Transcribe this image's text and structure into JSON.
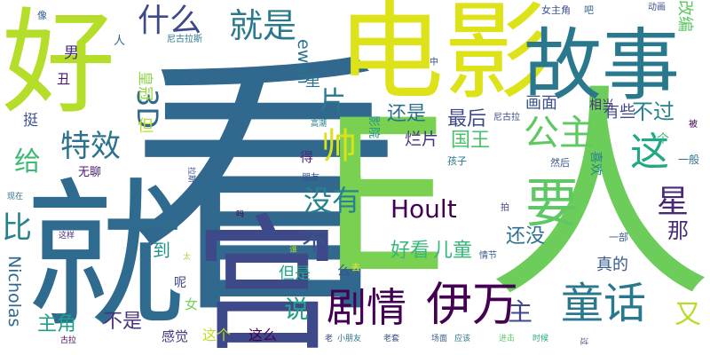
{
  "colors": {
    "palette": [
      "#440154",
      "#46327e",
      "#365c8d",
      "#277f8e",
      "#1fa187",
      "#4ac16d",
      "#a0da39",
      "#fde725"
    ]
  },
  "words": [
    {
      "text": "看",
      "color": "#31688e",
      "weight": 100
    },
    {
      "text": "就",
      "color": "#2f6b8e",
      "weight": 85
    },
    {
      "text": "人",
      "color": "#6ccd5a",
      "weight": 84
    },
    {
      "text": "宫",
      "color": "#3e4989",
      "weight": 82
    },
    {
      "text": "E",
      "color": "#7ad151",
      "weight": 80
    },
    {
      "text": "电影",
      "color": "#dde318",
      "weight": 78
    },
    {
      "text": "好",
      "color": "#b5de2b",
      "weight": 72
    },
    {
      "text": "故事",
      "color": "#2a788e",
      "weight": 66
    },
    {
      "text": "要",
      "color": "#5ec962",
      "weight": 48
    },
    {
      "text": "伊万",
      "color": "#440154",
      "weight": 44
    },
    {
      "text": "童话",
      "color": "#2a788e",
      "weight": 40
    },
    {
      "text": "剧情",
      "color": "#440154",
      "weight": 38
    },
    {
      "text": "这",
      "color": "#22a884",
      "weight": 37
    },
    {
      "text": "帅",
      "color": "#d8e219",
      "weight": 36
    },
    {
      "text": "公主",
      "color": "#5ec962",
      "weight": 33
    },
    {
      "text": "就是",
      "color": "#2a788e",
      "weight": 32
    },
    {
      "text": "什么",
      "color": "#3e4989",
      "weight": 31
    },
    {
      "text": "特效",
      "color": "#2c728e",
      "weight": 30
    },
    {
      "text": "星",
      "color": "#482878",
      "weight": 30
    },
    {
      "text": "没有",
      "color": "#26828e",
      "weight": 28
    },
    {
      "text": "3D",
      "color": "#31688e",
      "weight": 28
    },
    {
      "text": "比",
      "color": "#26828e",
      "weight": 28
    },
    {
      "text": "片",
      "color": "#2a788e",
      "weight": 27
    },
    {
      "text": "给",
      "color": "#3fbc73",
      "weight": 26
    },
    {
      "text": "又",
      "color": "#b5de2b",
      "weight": 26
    },
    {
      "text": "不",
      "color": "#3b528b",
      "weight": 25
    },
    {
      "text": "说",
      "color": "#20a386",
      "weight": 25
    },
    {
      "text": "Hoult",
      "color": "#440154",
      "weight": 24
    },
    {
      "text": "主",
      "color": "#3e4989",
      "weight": 24
    },
    {
      "text": "不过",
      "color": "#26828e",
      "weight": 21
    },
    {
      "text": "那",
      "color": "#472d7b",
      "weight": 20
    },
    {
      "text": "还是",
      "color": "#2d708e",
      "weight": 20
    },
    {
      "text": "最后",
      "color": "#3e4989",
      "weight": 19
    },
    {
      "text": "国王",
      "color": "#4ac16d",
      "weight": 19
    },
    {
      "text": "还没",
      "color": "#2e6f8e",
      "weight": 19
    },
    {
      "text": "不是",
      "color": "#46327e",
      "weight": 19
    },
    {
      "text": "主角",
      "color": "#1f9e89",
      "weight": 19
    },
    {
      "text": "好看",
      "color": "#35b779",
      "weight": 19
    },
    {
      "text": "儿童",
      "color": "#35b779",
      "weight": 19
    },
    {
      "text": "到",
      "color": "#21918c",
      "weight": 18
    },
    {
      "text": "画面",
      "color": "#3b528b",
      "weight": 17
    },
    {
      "text": "ewan",
      "color": "#2c728e",
      "weight": 17
    },
    {
      "text": "Nicholas",
      "color": "#31688e",
      "weight": 17
    },
    {
      "text": "烂片",
      "color": "#46337e",
      "weight": 17
    },
    {
      "text": "有些",
      "color": "#3e4989",
      "weight": 16
    },
    {
      "text": "真的",
      "color": "#365c8d",
      "weight": 16
    },
    {
      "text": "但是",
      "color": "#22a884",
      "weight": 16
    },
    {
      "text": "改编",
      "color": "#5ec962",
      "weight": 15
    },
    {
      "text": "皇冠",
      "color": "#8fd744",
      "weight": 15
    },
    {
      "text": "挺",
      "color": "#3b528b",
      "weight": 15
    },
    {
      "text": "但",
      "color": "#b5de2b",
      "weight": 15
    },
    {
      "text": "男",
      "color": "#472a7a",
      "weight": 15
    },
    {
      "text": "里",
      "color": "#2c728e",
      "weight": 15
    },
    {
      "text": "这么",
      "color": "#440154",
      "weight": 14
    },
    {
      "text": "这个",
      "color": "#bddf26",
      "weight": 14
    },
    {
      "text": "感觉",
      "color": "#443983",
      "weight": 14
    },
    {
      "text": "丑",
      "color": "#481a6c",
      "weight": 14
    },
    {
      "text": "得",
      "color": "#482878",
      "weight": 14
    },
    {
      "text": "么",
      "color": "#3b528b",
      "weight": 14
    },
    {
      "text": "无聊",
      "color": "#482173",
      "weight": 13
    },
    {
      "text": "喜欢",
      "color": "#26828e",
      "weight": 13
    },
    {
      "text": "女",
      "color": "#75d054",
      "weight": 13
    },
    {
      "text": "呢",
      "color": "#414487",
      "weight": 13
    },
    {
      "text": "个",
      "color": "#35b779",
      "weight": 12
    },
    {
      "text": "人",
      "color": "#31688e",
      "weight": 12
    },
    {
      "text": "影院",
      "color": "#21918c",
      "weight": 12
    },
    {
      "text": "相当",
      "color": "#46327e",
      "weight": 12
    },
    {
      "text": "一般",
      "color": "#2c728e",
      "weight": 11
    },
    {
      "text": "女主角",
      "color": "#3b528b",
      "weight": 11
    },
    {
      "text": "吧",
      "color": "#355f8d",
      "weight": 11
    },
    {
      "text": "孩子",
      "color": "#2a788e",
      "weight": 11
    },
    {
      "text": "然后",
      "color": "#3b528b",
      "weight": 11
    },
    {
      "text": "尼古拉",
      "color": "#3e4989",
      "weight": 10
    },
    {
      "text": "尼古拉斯",
      "color": "#2a788e",
      "weight": 10
    },
    {
      "text": "像",
      "color": "#355f8d",
      "weight": 10
    },
    {
      "text": "动画",
      "color": "#3b528b",
      "weight": 10
    },
    {
      "text": "一部",
      "color": "#365c8d",
      "weight": 10
    },
    {
      "text": "去",
      "color": "#fde725",
      "weight": 10
    },
    {
      "text": "情节",
      "color": "#355f8d",
      "weight": 10
    },
    {
      "text": "拍",
      "color": "#3e4989",
      "weight": 10
    },
    {
      "text": "被",
      "color": "#440154",
      "weight": 10
    },
    {
      "text": "朋友",
      "color": "#3b528b",
      "weight": 10
    },
    {
      "text": "中",
      "color": "#3e4989",
      "weight": 10
    },
    {
      "text": "现在",
      "color": "#2c728e",
      "weight": 9
    },
    {
      "text": "这样",
      "color": "#482878",
      "weight": 9
    },
    {
      "text": "拉斯",
      "color": "#3b528b",
      "weight": 9
    },
    {
      "text": "谁",
      "color": "#b5de2b",
      "weight": 9
    },
    {
      "text": "太",
      "color": "#a5db36",
      "weight": 9
    },
    {
      "text": "古拉",
      "color": "#440154",
      "weight": 9
    },
    {
      "text": "高潮",
      "color": "#26828e",
      "weight": 9
    },
    {
      "text": "老",
      "color": "#414487",
      "weight": 9
    },
    {
      "text": "小朋友",
      "color": "#2c728e",
      "weight": 9
    },
    {
      "text": "老套",
      "color": "#3b528b",
      "weight": 9
    },
    {
      "text": "场面",
      "color": "#365c8d",
      "weight": 9
    },
    {
      "text": "应该",
      "color": "#2a788e",
      "weight": 9
    },
    {
      "text": "进击",
      "color": "#5ec962",
      "weight": 9
    },
    {
      "text": "时候",
      "color": "#22a884",
      "weight": 9
    },
    {
      "text": "过",
      "color": "#482878",
      "weight": 9
    },
    {
      "text": "吗",
      "color": "#440154",
      "weight": 9
    }
  ]
}
